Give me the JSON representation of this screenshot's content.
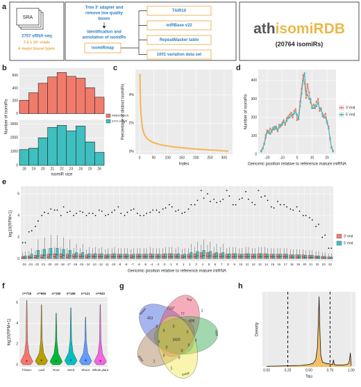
{
  "panel_labels": [
    "a",
    "b",
    "c",
    "d",
    "e",
    "f",
    "g",
    "h"
  ],
  "workflow": {
    "source": "SRA",
    "samples": "2757 sRNA-seq",
    "reads": "7.6 x 10⁷ reads",
    "tissues": "6 major tissue types",
    "trim": [
      "Trim 3' adapter and",
      "remove low quality",
      "bases"
    ],
    "identify": [
      "Identification and",
      "annotation of isomiRs"
    ],
    "tool": "isomiRmap",
    "references": [
      "TAIR10",
      "miRBase v22",
      "RepeatMasker table",
      "1001 variation data set"
    ]
  },
  "database": {
    "prefix": "ath",
    "name": "isomiRDB",
    "count": "(20764 isomiRs)"
  },
  "chart_data": [
    {
      "type": "bar_facets",
      "xlabel": "isomiR size",
      "ylabel": "Number of isomiRs",
      "categories": [
        18,
        19,
        20,
        21,
        22,
        23,
        24,
        25,
        26
      ],
      "facets": [
        {
          "name": "AMBIGUOUS",
          "color": "#f07b6b",
          "values": [
            210,
            330,
            480,
            580,
            650,
            590,
            560,
            410,
            260
          ],
          "ylim": [
            0,
            720
          ],
          "yticks": [
            0,
            200,
            400,
            600
          ]
        },
        {
          "name": "EXCLUSIVE",
          "color": "#3fbfbf",
          "values": [
            1150,
            1250,
            2000,
            2750,
            2900,
            2500,
            2850,
            1700,
            950
          ],
          "ylim": [
            0,
            3300
          ],
          "yticks": [
            0,
            1000,
            2000,
            3000
          ]
        }
      ]
    },
    {
      "type": "line",
      "xlabel": "Index",
      "ylabel": "Percentage of distinct isomiRs",
      "color": "#f4b860",
      "x": [
        1,
        3,
        5,
        8,
        10,
        15,
        20,
        25,
        30,
        40,
        50,
        60,
        80,
        100,
        125,
        150,
        175,
        200,
        225,
        250,
        275,
        300,
        315
      ],
      "values": [
        5.5,
        3.4,
        2.6,
        2.0,
        1.7,
        1.3,
        1.1,
        0.95,
        0.85,
        0.72,
        0.62,
        0.55,
        0.45,
        0.38,
        0.31,
        0.26,
        0.21,
        0.17,
        0.13,
        0.1,
        0.07,
        0.04,
        0.01
      ],
      "xlim": [
        -15,
        330
      ],
      "ylim": [
        -0.2,
        5.8
      ],
      "xticks": [
        0,
        50,
        100,
        150,
        200,
        250,
        300
      ],
      "yticks": [
        {
          "value": 0,
          "label": "0%"
        },
        {
          "value": 2,
          "label": "2%"
        },
        {
          "value": 4,
          "label": "4%"
        }
      ]
    },
    {
      "type": "line",
      "xlabel": "Genomic position relative to reference mature miRNA",
      "ylabel": "Number of isomiRs",
      "x": [
        -24,
        -23,
        -22,
        -21,
        -20,
        -19,
        -18,
        -17,
        -16,
        -15,
        -14,
        -13,
        -12,
        -11,
        -10,
        -9,
        -8,
        -7,
        -6,
        -5,
        -4,
        -3,
        -2,
        -1,
        0,
        1,
        2,
        3,
        4,
        5,
        6,
        7,
        8,
        9,
        10,
        11,
        12,
        13,
        14,
        15,
        16,
        17,
        18,
        19,
        20,
        21,
        22,
        23,
        24
      ],
      "series": [
        {
          "name": "3' end",
          "color": "#f07b6b",
          "values": [
            20,
            35,
            60,
            105,
            130,
            115,
            140,
            120,
            135,
            150,
            140,
            125,
            160,
            150,
            170,
            185,
            160,
            195,
            205,
            215,
            225,
            200,
            235,
            245,
            185,
            205,
            285,
            355,
            430,
            385,
            305,
            380,
            335,
            280,
            260,
            270,
            250,
            285,
            300,
            235,
            250,
            205,
            210,
            220,
            180,
            150,
            80,
            40,
            20
          ]
        },
        {
          "name": "5' end",
          "color": "#3fbfbf",
          "values": [
            15,
            30,
            55,
            90,
            120,
            125,
            110,
            130,
            145,
            135,
            150,
            135,
            145,
            160,
            160,
            175,
            170,
            180,
            195,
            200,
            210,
            215,
            220,
            230,
            215,
            190,
            260,
            330,
            400,
            440,
            340,
            320,
            300,
            300,
            250,
            250,
            265,
            260,
            280,
            250,
            240,
            220,
            200,
            200,
            170,
            140,
            90,
            35,
            15
          ]
        }
      ],
      "xlim": [
        -26,
        26
      ],
      "ylim": [
        0,
        460
      ],
      "xticks": [
        -20,
        -10,
        0,
        10,
        20
      ],
      "yticks": [
        0,
        100,
        200,
        300,
        400
      ]
    },
    {
      "type": "boxplot",
      "xlabel": "Genomic position relative to reference mature miRNA",
      "ylabel": "log10(RPM+1)",
      "categories": [
        -24,
        -23,
        -22,
        -21,
        -20,
        -19,
        -18,
        -17,
        -16,
        -15,
        -14,
        -13,
        -12,
        -11,
        -10,
        -9,
        -8,
        -7,
        -6,
        -5,
        -4,
        -3,
        -2,
        -1,
        0,
        1,
        2,
        3,
        4,
        5,
        6,
        7,
        8,
        9,
        10,
        11,
        12,
        13,
        14,
        15,
        16,
        17,
        18,
        19,
        20,
        21,
        22,
        23,
        24
      ],
      "ylim": [
        -0.2,
        6.7
      ],
      "yticks": [
        0,
        2,
        4,
        6
      ],
      "series": [
        {
          "name": "3' end",
          "color": "#f07b6b",
          "q1": [
            0.03,
            0.03,
            0.03,
            0.03,
            0.03,
            0.03,
            0.03,
            0.03,
            0.03,
            0.03,
            0.03,
            0.03,
            0.03,
            0.03,
            0.03,
            0.03,
            0.03,
            0.03,
            0.03,
            0.03,
            0.03,
            0.03,
            0.03,
            0.03,
            0.03,
            0.03,
            0.03,
            0.03,
            0.03,
            0.03,
            0.03,
            0.03,
            0.03,
            0.03,
            0.03,
            0.03,
            0.03,
            0.03,
            0.03,
            0.03,
            0.03,
            0.03,
            0.03,
            0.03,
            0.03,
            0.03,
            0.03,
            0.03,
            0.03
          ],
          "median": [
            0.1,
            0.12,
            0.15,
            0.15,
            0.18,
            0.2,
            0.2,
            0.18,
            0.2,
            0.2,
            0.18,
            0.2,
            0.2,
            0.18,
            0.2,
            0.2,
            0.2,
            0.18,
            0.2,
            0.2,
            0.22,
            0.2,
            0.2,
            0.22,
            0.2,
            0.18,
            0.2,
            0.22,
            0.25,
            0.25,
            0.22,
            0.22,
            0.2,
            0.22,
            0.2,
            0.22,
            0.2,
            0.22,
            0.22,
            0.2,
            0.2,
            0.2,
            0.18,
            0.18,
            0.18,
            0.15,
            0.12,
            0.1,
            0.08
          ],
          "q3": [
            0.25,
            0.3,
            0.35,
            0.4,
            0.45,
            0.5,
            0.5,
            0.45,
            0.45,
            0.45,
            0.4,
            0.45,
            0.45,
            0.4,
            0.45,
            0.45,
            0.45,
            0.4,
            0.45,
            0.45,
            0.5,
            0.45,
            0.45,
            0.5,
            0.45,
            0.4,
            0.45,
            0.5,
            0.6,
            0.6,
            0.5,
            0.5,
            0.45,
            0.5,
            0.45,
            0.5,
            0.45,
            0.5,
            0.5,
            0.45,
            0.45,
            0.45,
            0.4,
            0.4,
            0.4,
            0.35,
            0.3,
            0.25,
            0.2
          ],
          "whisker": [
            0.6,
            0.7,
            0.8,
            0.9,
            1.0,
            1.1,
            1.1,
            1.0,
            1.0,
            1.0,
            0.9,
            1.0,
            1.0,
            0.9,
            1.0,
            1.0,
            1.0,
            0.9,
            1.0,
            1.0,
            1.1,
            1.0,
            1.0,
            1.1,
            1.0,
            0.9,
            1.0,
            1.1,
            1.3,
            1.3,
            1.1,
            1.1,
            1.0,
            1.1,
            1.0,
            1.1,
            1.0,
            1.1,
            1.1,
            1.0,
            1.0,
            1.0,
            0.9,
            0.9,
            0.9,
            0.8,
            0.7,
            0.6,
            0.5
          ],
          "max": [
            1.5,
            2.5,
            3.0,
            4.0,
            4.2,
            4.5,
            4.0,
            4.3,
            4.0,
            4.4,
            4.0,
            4.2,
            4.5,
            4.0,
            4.3,
            4.8,
            4.0,
            4.5,
            4.2,
            4.0,
            4.3,
            4.5,
            4.6,
            5.0,
            4.4,
            4.2,
            4.6,
            5.0,
            6.3,
            6.0,
            5.5,
            5.3,
            6.3,
            5.0,
            5.5,
            6.2,
            5.2,
            6.3,
            5.8,
            4.8,
            5.3,
            5.0,
            4.6,
            4.8,
            4.0,
            3.8,
            3.0,
            2.0,
            1.0
          ]
        },
        {
          "name": "5' end",
          "color": "#3fbfbf",
          "q1": [
            0.03,
            0.03,
            0.03,
            0.03,
            0.03,
            0.03,
            0.03,
            0.03,
            0.03,
            0.03,
            0.03,
            0.03,
            0.03,
            0.03,
            0.03,
            0.03,
            0.03,
            0.03,
            0.03,
            0.03,
            0.03,
            0.03,
            0.03,
            0.03,
            0.03,
            0.03,
            0.03,
            0.03,
            0.03,
            0.03,
            0.03,
            0.03,
            0.03,
            0.03,
            0.03,
            0.03,
            0.03,
            0.03,
            0.03,
            0.03,
            0.03,
            0.03,
            0.03,
            0.03,
            0.03,
            0.03,
            0.03,
            0.03,
            0.03
          ],
          "median": [
            0.1,
            0.15,
            0.3,
            0.35,
            0.4,
            0.4,
            0.35,
            0.3,
            0.25,
            0.25,
            0.22,
            0.2,
            0.2,
            0.2,
            0.2,
            0.2,
            0.2,
            0.2,
            0.2,
            0.2,
            0.2,
            0.2,
            0.22,
            0.22,
            0.22,
            0.2,
            0.25,
            0.3,
            0.35,
            0.3,
            0.25,
            0.25,
            0.22,
            0.22,
            0.2,
            0.22,
            0.2,
            0.22,
            0.2,
            0.2,
            0.2,
            0.2,
            0.18,
            0.18,
            0.15,
            0.15,
            0.12,
            0.1,
            0.08
          ],
          "q3": [
            0.3,
            0.45,
            0.8,
            0.9,
            1.0,
            1.0,
            0.9,
            0.8,
            0.6,
            0.6,
            0.5,
            0.5,
            0.5,
            0.45,
            0.5,
            0.45,
            0.45,
            0.45,
            0.45,
            0.45,
            0.45,
            0.45,
            0.5,
            0.5,
            0.5,
            0.45,
            0.6,
            0.7,
            0.8,
            0.7,
            0.6,
            0.6,
            0.5,
            0.5,
            0.45,
            0.5,
            0.45,
            0.5,
            0.45,
            0.45,
            0.45,
            0.45,
            0.4,
            0.4,
            0.35,
            0.35,
            0.3,
            0.25,
            0.2
          ],
          "whisker": [
            0.7,
            1.0,
            1.8,
            2.0,
            2.2,
            2.2,
            2.0,
            1.8,
            1.4,
            1.4,
            1.1,
            1.1,
            1.1,
            1.0,
            1.1,
            1.0,
            1.0,
            1.0,
            1.0,
            1.0,
            1.0,
            1.0,
            1.1,
            1.1,
            1.1,
            1.0,
            1.4,
            1.6,
            1.8,
            1.6,
            1.4,
            1.4,
            1.1,
            1.1,
            1.0,
            1.1,
            1.0,
            1.1,
            1.0,
            1.0,
            1.0,
            1.0,
            0.9,
            0.9,
            0.8,
            0.8,
            0.7,
            0.6,
            0.5
          ],
          "max": [
            1.5,
            2.6,
            3.5,
            4.3,
            4.6,
            4.5,
            4.8,
            4.4,
            4.2,
            4.3,
            4.2,
            4.0,
            4.4,
            4.1,
            4.5,
            4.2,
            4.3,
            4.6,
            4.0,
            4.2,
            4.5,
            4.3,
            4.7,
            4.8,
            4.5,
            4.3,
            5.0,
            5.4,
            5.6,
            5.3,
            5.2,
            5.5,
            5.8,
            5.0,
            5.6,
            5.5,
            5.0,
            5.7,
            5.4,
            4.7,
            5.0,
            4.8,
            4.5,
            4.4,
            4.0,
            3.6,
            3.2,
            2.2,
            1.0
          ]
        }
      ]
    },
    {
      "type": "violin",
      "ylabel": "log10(RPM+1)",
      "categories": [
        "Flower",
        "Leaf",
        "Root",
        "Seed",
        "Shoot",
        "Whole plant"
      ],
      "values": [
        718,
        666,
        190,
        186,
        121,
        633
      ],
      "value_labels": [
        "n=718",
        "n=666",
        "n=190",
        "n=186",
        "n=121",
        "n=633"
      ],
      "colors": [
        "#f8766d",
        "#b79f00",
        "#00ba38",
        "#00bfc4",
        "#619cff",
        "#f564e3"
      ],
      "median": [
        0.3,
        0.35,
        0.3,
        0.4,
        0.35,
        0.3
      ],
      "max": [
        6.2,
        5.8,
        5.0,
        5.5,
        4.6,
        5.8
      ],
      "ylim": [
        -0.2,
        6.5
      ],
      "yticks": [
        0,
        2,
        4,
        6
      ]
    },
    {
      "type": "venn",
      "sets": [
        {
          "name": "flower",
          "color": "#3b5bdb"
        },
        {
          "name": "leaf",
          "color": "#e8496a"
        },
        {
          "name": "root",
          "color": "#2fa84f"
        },
        {
          "name": "seed",
          "color": "#a67c52"
        },
        {
          "name": "shoot",
          "color": "#f2e64b"
        }
      ],
      "regions": [
        453,
        7237,
        77,
        608,
        3420,
        1,
        1,
        1,
        0,
        0,
        0,
        0,
        0,
        0,
        0,
        0,
        0,
        0,
        0
      ]
    },
    {
      "type": "density",
      "xlabel": "Tau",
      "ylabel": "Density",
      "color": "#f4c06a",
      "x": [
        0,
        0.05,
        0.1,
        0.2,
        0.3,
        0.4,
        0.5,
        0.55,
        0.58,
        0.6,
        0.61,
        0.62,
        0.63,
        0.64,
        0.66,
        0.7,
        0.75,
        0.78,
        0.79,
        0.8,
        0.82,
        0.9,
        0.95,
        0.97,
        0.98,
        0.99,
        1.0
      ],
      "values": [
        0.2,
        0.3,
        0.3,
        0.4,
        0.5,
        0.6,
        1,
        1.5,
        3,
        8,
        18,
        30,
        15,
        5,
        2,
        1.5,
        1.2,
        1,
        3,
        1,
        0.8,
        0.8,
        1,
        1.5,
        3,
        6,
        0.5
      ],
      "thresholds": [
        0.25,
        0.75
      ],
      "xlim": [
        -0.05,
        1.05
      ],
      "ylim": [
        0,
        32
      ],
      "xticks": [
        {
          "value": 0,
          "label": "0.00"
        },
        0.25,
        {
          "value": 0.5,
          "label": "0.50"
        },
        0.75,
        {
          "value": 1,
          "label": "1.00"
        }
      ]
    }
  ]
}
